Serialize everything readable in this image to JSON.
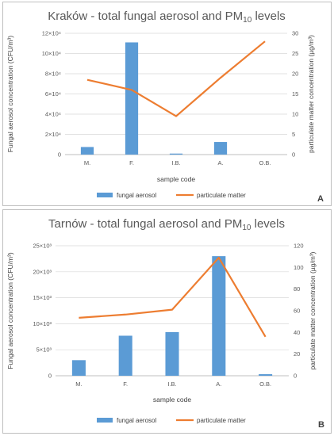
{
  "colors": {
    "fungal": "#5b9bd5",
    "pm": "#ed7d31",
    "grid": "#d9d9d9",
    "axis": "#bfbfbf"
  },
  "chart_data": [
    {
      "type": "bar",
      "panel": "A",
      "title_main": "Kraków - total fungal aerosol and PM",
      "title_sub": "10",
      "title_end": " levels",
      "xlabel": "sample code",
      "ylabel": "Fungal aerosol concentration (CFU/m³)",
      "y2label": "particulate matter concentration (µg/m³)",
      "categories": [
        "M.",
        "F.",
        "I.B.",
        "A.",
        "O.B."
      ],
      "ylim": [
        0,
        120000
      ],
      "y_ticks": [
        0,
        20000,
        40000,
        60000,
        80000,
        100000,
        120000
      ],
      "y_tick_labels": [
        "0",
        "2×10⁴",
        "4×10⁴",
        "6×10⁴",
        "8×10⁴",
        "10×10⁴",
        "12×10⁴"
      ],
      "y2lim": [
        0,
        30
      ],
      "y2_ticks": [
        0,
        5,
        10,
        15,
        20,
        25,
        30
      ],
      "y2_tick_labels": [
        "0",
        "5",
        "10",
        "15",
        "20",
        "25",
        "30"
      ],
      "series": [
        {
          "name": "fungal aerosol",
          "type": "bar",
          "axis": "left",
          "values": [
            7500,
            111000,
            1000,
            12500,
            0
          ]
        },
        {
          "name": "particulate matter",
          "type": "line",
          "axis": "right",
          "values": [
            18.5,
            16,
            9.5,
            19,
            28
          ]
        }
      ]
    },
    {
      "type": "bar",
      "panel": "B",
      "title_main": "Tarnów - total fungal aerosol and PM",
      "title_sub": "10",
      "title_end": " levels",
      "xlabel": "sample code",
      "ylabel": "Fungal aerosol concentration (CFU/m³)",
      "y2label": "particulate matter concentration (µg/m³)",
      "categories": [
        "M.",
        "F.",
        "I.B.",
        "A.",
        "O.B."
      ],
      "ylim": [
        0,
        25000
      ],
      "y_ticks": [
        0,
        5000,
        10000,
        15000,
        20000,
        25000
      ],
      "y_tick_labels": [
        "0",
        "5×10³",
        "10×10³",
        "15×10³",
        "20×10³",
        "25×10³"
      ],
      "y2lim": [
        0,
        120
      ],
      "y2_ticks": [
        0,
        20,
        40,
        60,
        80,
        100,
        120
      ],
      "y2_tick_labels": [
        "0",
        "20",
        "40",
        "60",
        "80",
        "100",
        "120"
      ],
      "series": [
        {
          "name": "fungal aerosol",
          "type": "bar",
          "axis": "left",
          "values": [
            3000,
            7700,
            8400,
            23000,
            300
          ]
        },
        {
          "name": "particulate matter",
          "type": "line",
          "axis": "right",
          "values": [
            53.5,
            56.5,
            61,
            109,
            36
          ]
        }
      ]
    }
  ]
}
